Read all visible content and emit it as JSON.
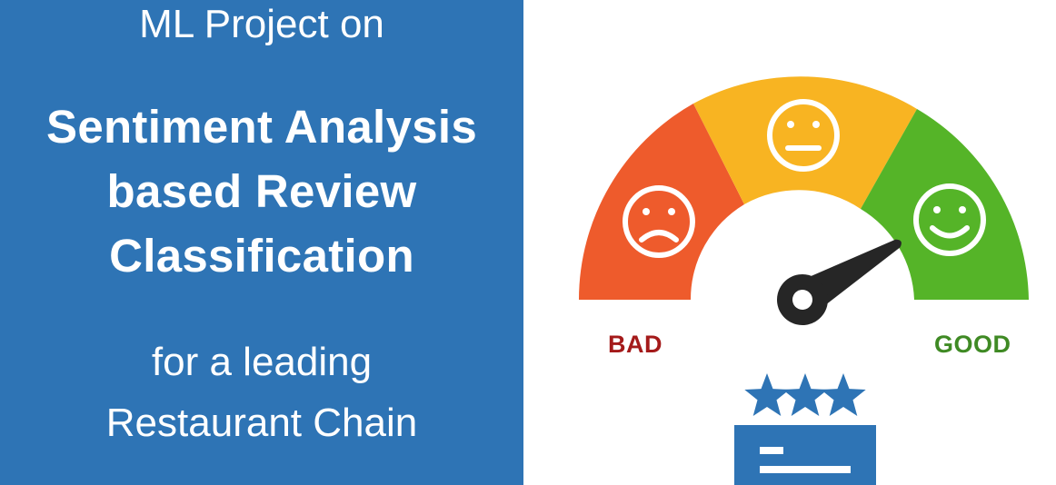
{
  "title": {
    "intro": "ML Project on",
    "headline_lines": [
      "Sentiment Analysis",
      "based Review",
      "Classification"
    ],
    "sub_lines": [
      "for a leading",
      "Restaurant Chain"
    ]
  },
  "gauge": {
    "bad_label": "BAD",
    "good_label": "GOOD",
    "needle_level": 0.83,
    "segments": [
      {
        "name": "bad",
        "icon": "sad-face-icon",
        "color": "#ee5b2c"
      },
      {
        "name": "neutral",
        "icon": "neutral-face-icon",
        "color": "#f8b422"
      },
      {
        "name": "good",
        "icon": "happy-face-icon",
        "color": "#55b428"
      }
    ]
  },
  "rating": {
    "stars": 3,
    "star_icon": "star-icon",
    "card_icon": "review-card-icon"
  },
  "colors": {
    "panel": "#2e74b5",
    "bad_text": "#a41a1a",
    "good_text": "#3f8a24",
    "needle": "#262626",
    "star": "#2e74b5"
  }
}
